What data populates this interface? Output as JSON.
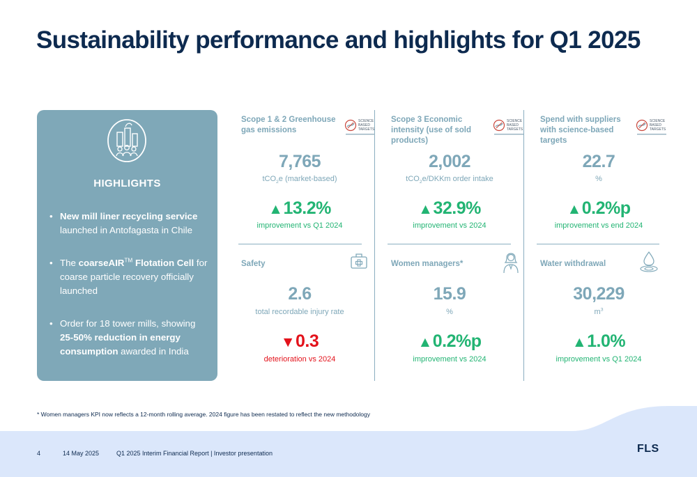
{
  "title": "Sustainability performance and highlights for Q1 2025",
  "highlights": {
    "heading": "HIGHLIGHTS",
    "items": [
      {
        "bold": "New mill liner recycling service",
        "rest": "launched in Antofagasta in Chile"
      },
      {
        "pre": "The ",
        "bold": "coarseAIR",
        "sup": "TM",
        "bold2": " Flotation Cell",
        "rest": " for coarse particle recovery officially launched"
      },
      {
        "pre": "Order for 18 tower mills, showing ",
        "bold": "25-50% reduction in energy consumption",
        "rest": " awarded in India"
      }
    ]
  },
  "sbt_badge": {
    "line1": "SCIENCE",
    "line2": "BASED",
    "line3": "TARGETS"
  },
  "kpis": {
    "scope12": {
      "label": "Scope 1 & 2 Greenhouse gas emissions",
      "value": "7,765",
      "unit_pre": "tCO",
      "unit_sub": "2",
      "unit_post": "e (market-based)",
      "change": "13.2%",
      "direction": "up",
      "desc": "improvement vs Q1 2024"
    },
    "scope3": {
      "label": "Scope 3 Economic intensity (use of sold products)",
      "value": "2,002",
      "unit_pre": "tCO",
      "unit_sub": "2",
      "unit_post": "e/DKKm order intake",
      "change": "32.9%",
      "direction": "up",
      "desc": "improvement vs 2024"
    },
    "suppliers": {
      "label": "Spend with suppliers with science-based targets",
      "value": "22.7",
      "unit": "%",
      "change": "0.2%p",
      "direction": "up",
      "desc": "improvement vs end 2024"
    },
    "safety": {
      "label": "Safety",
      "value": "2.6",
      "unit": "total recordable injury rate",
      "change": "0.3",
      "direction": "down",
      "desc": "deterioration vs 2024"
    },
    "women": {
      "label": "Women managers*",
      "value": "15.9",
      "unit": "%",
      "change": "0.2%p",
      "direction": "up",
      "desc": "improvement vs 2024"
    },
    "water": {
      "label": "Water withdrawal",
      "value": "30,229",
      "unit_pre": "m",
      "unit_sup": "3",
      "change": "1.0%",
      "direction": "up",
      "desc": "improvement vs Q1 2024"
    }
  },
  "arrows": {
    "up": "▲",
    "down": "▼"
  },
  "footnote": "* Women managers KPI now reflects a 12-month rolling average. 2024 figure has been restated to reflect the new methodology",
  "footer": {
    "page": "4",
    "date": "14 May 2025",
    "report": "Q1 2025 Interim Financial Report | Investor presentation",
    "logo": "FLS"
  },
  "colors": {
    "navy": "#0d2a4f",
    "teal": "#7fa8b8",
    "green": "#22b473",
    "red": "#e3121b",
    "footer_band": "#dbe7fb"
  }
}
